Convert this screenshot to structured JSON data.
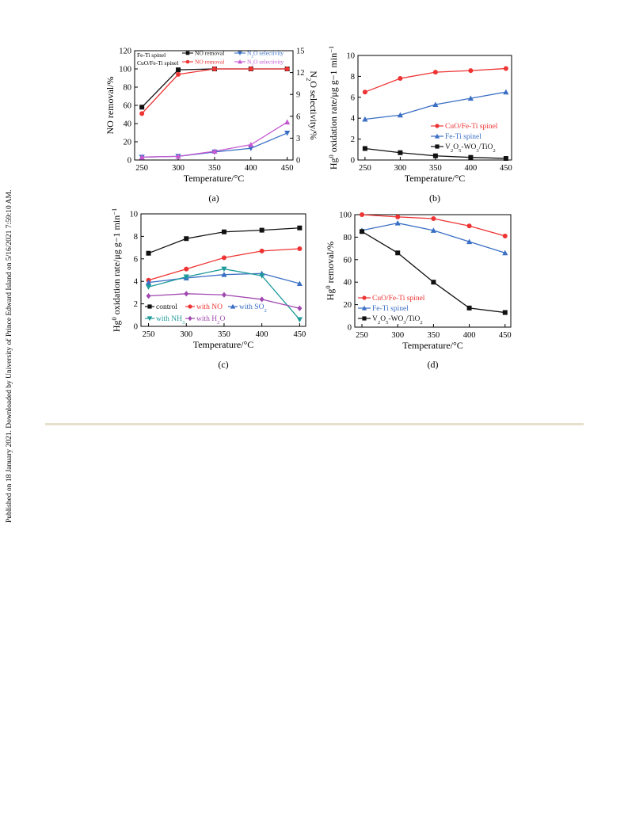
{
  "side_note": "Published on 18 January 2021. Downloaded by University of Prince Edward Island on 5/16/2021 7:59:10 AM.",
  "colors": {
    "black": "#111111",
    "red": "#ee3333",
    "blue": "#3a6fc4",
    "magenta": "#c55ad0",
    "teal": "#1e9a9a",
    "purple": "#a048b0"
  },
  "chart_data": [
    {
      "panel": "(a)",
      "type": "line",
      "x": [
        250,
        300,
        350,
        400,
        450
      ],
      "xlabel": "Temperature/°C",
      "ylabel": "NO removal/%",
      "y2label": "N2O selectivity/%",
      "ylim": [
        0,
        120
      ],
      "y2lim": [
        0,
        15
      ],
      "xticks": [
        "250",
        "300",
        "350",
        "400",
        "450"
      ],
      "yticks": [
        "0",
        "20",
        "40",
        "60",
        "80",
        "100",
        "120"
      ],
      "y2ticks": [
        "0",
        "3",
        "6",
        "9",
        "12",
        "15"
      ],
      "legend_groups": [
        "Fe-Ti spinel",
        "CuO/Fe-Ti spinel"
      ],
      "series": [
        {
          "name": "NO removal",
          "group": "Fe-Ti spinel",
          "axis": "left",
          "marker": "square",
          "color": "#111111",
          "values": [
            58,
            99,
            100,
            100,
            100
          ]
        },
        {
          "name": "N2O selectivity",
          "group": "Fe-Ti spinel",
          "axis": "right",
          "marker": "triangle-down",
          "color": "#3a6fc4",
          "values": [
            0.4,
            0.5,
            1.1,
            1.6,
            3.7
          ]
        },
        {
          "name": "NO removal",
          "group": "CuO/Fe-Ti spinel",
          "axis": "left",
          "marker": "circle",
          "color": "#ee3333",
          "values": [
            51,
            94,
            100,
            100,
            100
          ]
        },
        {
          "name": "N2O selectivity",
          "group": "CuO/Fe-Ti spinel",
          "axis": "right",
          "marker": "triangle-up",
          "color": "#c55ad0",
          "values": [
            0.4,
            0.5,
            1.2,
            2.1,
            5.2
          ]
        }
      ]
    },
    {
      "panel": "(b)",
      "type": "line",
      "x": [
        250,
        300,
        350,
        400,
        450
      ],
      "xlabel": "Temperature/°C",
      "ylabel": "Hg0 oxidation rate/μg g−1 min−1",
      "ylim": [
        0,
        10
      ],
      "xticks": [
        "250",
        "300",
        "350",
        "400",
        "450"
      ],
      "yticks": [
        "0",
        "2",
        "4",
        "6",
        "8",
        "10"
      ],
      "series": [
        {
          "name": "CuO/Fe-Ti spinel",
          "marker": "circle",
          "color": "#ee3333",
          "values": [
            6.5,
            7.8,
            8.4,
            8.55,
            8.75
          ]
        },
        {
          "name": "Fe-Ti spinel",
          "marker": "triangle-up",
          "color": "#3a6fc4",
          "values": [
            3.9,
            4.3,
            5.3,
            5.9,
            6.5
          ]
        },
        {
          "name": "V2O5-WO3/TiO2",
          "marker": "square",
          "color": "#111111",
          "values": [
            1.1,
            0.7,
            0.4,
            0.25,
            0.15
          ]
        }
      ]
    },
    {
      "panel": "(c)",
      "type": "line",
      "x": [
        250,
        300,
        350,
        400,
        450
      ],
      "xlabel": "Temperature/°C",
      "ylabel": "Hg0 oxidation rate/μg g−1 min−1",
      "ylim": [
        0,
        10
      ],
      "xticks": [
        "250",
        "300",
        "350",
        "400",
        "450"
      ],
      "yticks": [
        "0",
        "2",
        "4",
        "6",
        "8",
        "10"
      ],
      "series": [
        {
          "name": "control",
          "marker": "square",
          "color": "#111111",
          "values": [
            6.5,
            7.8,
            8.4,
            8.55,
            8.75
          ]
        },
        {
          "name": "with NO",
          "marker": "circle",
          "color": "#ee3333",
          "values": [
            4.1,
            5.1,
            6.1,
            6.7,
            6.9
          ]
        },
        {
          "name": "with SO2",
          "marker": "triangle-up",
          "color": "#3a6fc4",
          "values": [
            3.9,
            4.3,
            4.6,
            4.7,
            3.8
          ]
        },
        {
          "name": "with NH3",
          "marker": "triangle-down",
          "color": "#1e9a9a",
          "values": [
            3.5,
            4.4,
            5.1,
            4.5,
            0.6
          ]
        },
        {
          "name": "with H2O",
          "marker": "diamond",
          "color": "#a048b0",
          "values": [
            2.7,
            2.9,
            2.8,
            2.4,
            1.6
          ]
        }
      ]
    },
    {
      "panel": "(d)",
      "type": "line",
      "x": [
        250,
        300,
        350,
        400,
        450
      ],
      "xlabel": "Temperature/°C",
      "ylabel": "Hg0 removal/%",
      "ylim": [
        0,
        100
      ],
      "xticks": [
        "250",
        "300",
        "350",
        "400",
        "450"
      ],
      "yticks": [
        "0",
        "20",
        "40",
        "60",
        "80",
        "100"
      ],
      "series": [
        {
          "name": "CuO/Fe-Ti spinel",
          "marker": "circle",
          "color": "#ee3333",
          "values": [
            100,
            98,
            96.5,
            90,
            81
          ]
        },
        {
          "name": "Fe-Ti spinel",
          "marker": "triangle-up",
          "color": "#3a6fc4",
          "values": [
            86,
            92.5,
            86,
            76,
            66
          ]
        },
        {
          "name": "V2O5-WO3/TiO2",
          "marker": "square",
          "color": "#111111",
          "values": [
            85,
            66,
            40,
            17,
            13
          ]
        }
      ]
    }
  ]
}
